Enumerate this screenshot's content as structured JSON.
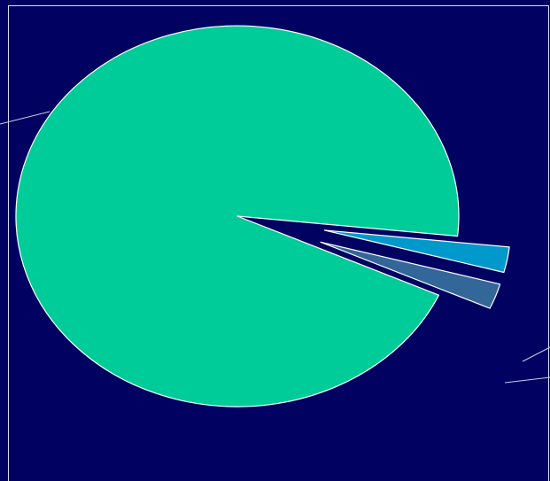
{
  "colors": {
    "background": "#010162",
    "frame": "#d8dcf0",
    "outline": "#ffffff",
    "leader_line": "#c9cde6"
  },
  "chart_data": {
    "type": "pie",
    "title": "",
    "legend": "none",
    "data_labels": "none",
    "slices": [
      {
        "value": 92.5,
        "color": "#00cc99",
        "exploded": false,
        "leader_line": true
      },
      {
        "value": 2.5,
        "color": "#0099cc",
        "exploded": true,
        "leader_line": true
      },
      {
        "value": 2.5,
        "color": "#336699",
        "exploded": true,
        "leader_line": true
      }
    ]
  }
}
